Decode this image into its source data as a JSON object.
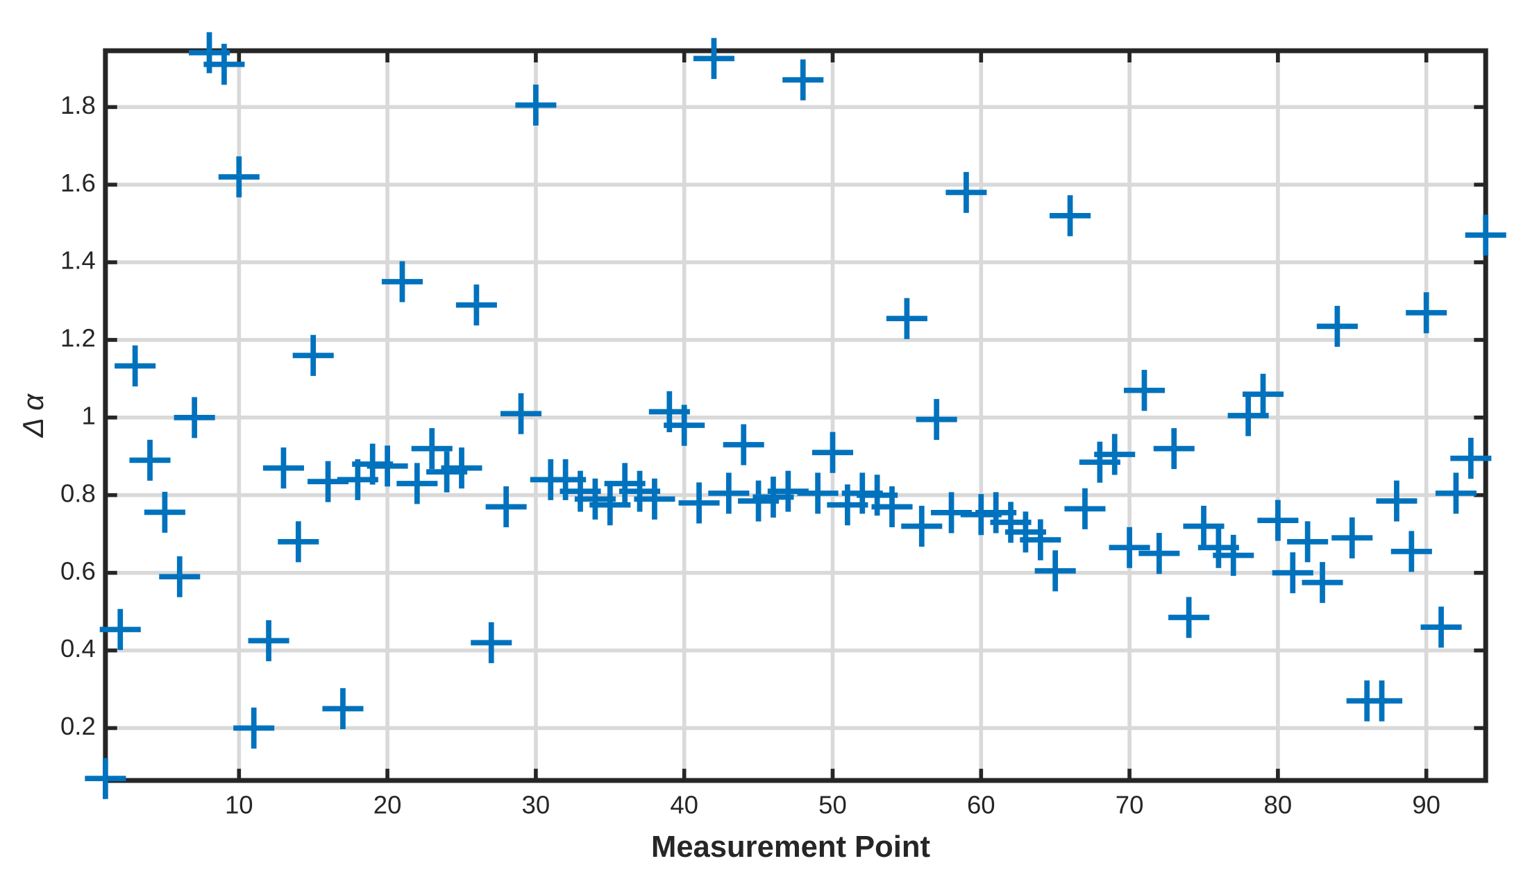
{
  "chart_data": {
    "type": "scatter",
    "xlabel": "Measurement Point",
    "ylabel": "Δ α",
    "marker": "+",
    "color": "#0072bd",
    "grid": true,
    "xlim": [
      1,
      94
    ],
    "ylim": [
      0.065,
      1.945
    ],
    "xticks": [
      10,
      20,
      30,
      40,
      50,
      60,
      70,
      80,
      90
    ],
    "yticks": [
      0.2,
      0.4,
      0.6,
      0.8,
      1,
      1.2,
      1.4,
      1.6,
      1.8
    ],
    "x": [
      1,
      2,
      3,
      4,
      5,
      6,
      7,
      8,
      9,
      10,
      11,
      12,
      13,
      14,
      15,
      16,
      17,
      18,
      19,
      20,
      21,
      22,
      23,
      24,
      25,
      26,
      27,
      28,
      29,
      30,
      31,
      32,
      33,
      34,
      35,
      36,
      37,
      38,
      39,
      40,
      41,
      42,
      43,
      44,
      45,
      46,
      47,
      48,
      49,
      50,
      51,
      52,
      53,
      54,
      55,
      56,
      57,
      58,
      59,
      60,
      61,
      62,
      63,
      64,
      65,
      66,
      67,
      68,
      69,
      70,
      71,
      72,
      73,
      74,
      75,
      76,
      77,
      78,
      79,
      80,
      81,
      82,
      83,
      84,
      85,
      86,
      87,
      88,
      89,
      90,
      91,
      92,
      93,
      94
    ],
    "values": [
      0.07,
      0.454,
      1.133,
      0.89,
      0.756,
      0.59,
      1.0,
      1.94,
      1.91,
      1.62,
      0.2,
      0.425,
      0.87,
      0.68,
      1.16,
      0.835,
      0.25,
      0.84,
      0.88,
      0.875,
      1.35,
      0.83,
      0.92,
      0.86,
      0.87,
      1.29,
      0.42,
      0.77,
      1.01,
      1.805,
      0.84,
      0.84,
      0.81,
      0.79,
      0.775,
      0.83,
      0.81,
      0.79,
      1.015,
      0.98,
      0.78,
      1.925,
      0.805,
      0.93,
      0.785,
      0.795,
      0.81,
      1.87,
      0.805,
      0.91,
      0.775,
      0.805,
      0.8,
      0.77,
      1.255,
      0.72,
      0.995,
      0.755,
      1.58,
      0.75,
      0.755,
      0.73,
      0.705,
      0.685,
      0.605,
      1.52,
      0.765,
      0.885,
      0.905,
      0.665,
      1.07,
      0.65,
      0.92,
      0.485,
      0.72,
      0.665,
      0.645,
      1.005,
      1.06,
      0.735,
      0.6,
      0.68,
      0.575,
      1.235,
      0.69,
      0.27,
      0.27,
      0.785,
      0.655,
      1.27,
      0.46,
      0.805,
      0.895,
      1.47
    ]
  }
}
